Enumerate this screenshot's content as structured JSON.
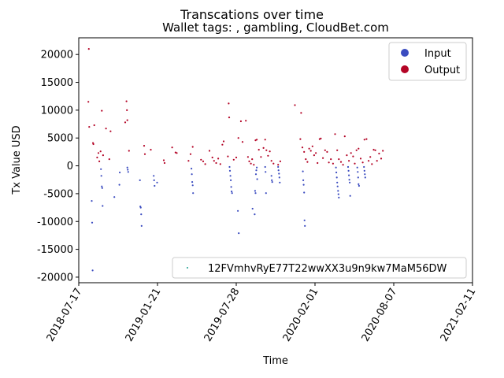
{
  "chart_data": {
    "type": "scatter",
    "title": "Transcations over time",
    "subtitle": "Wallet tags: , gambling, CloudBet.com",
    "xlabel": "Time",
    "ylabel": "Tx Value USD",
    "xlim": [
      "2018-07-17",
      "2021-02-11"
    ],
    "ylim": [
      -21000,
      23000
    ],
    "x_ticks": [
      "2018-07-17",
      "2019-01-21",
      "2019-07-28",
      "2020-02-01",
      "2020-08-07",
      "2021-02-11"
    ],
    "y_ticks": [
      -20000,
      -15000,
      -10000,
      -5000,
      0,
      5000,
      10000,
      15000,
      20000
    ],
    "grid": false,
    "legend_upper": {
      "placement": "top-right",
      "entries": [
        "Input",
        "Output"
      ]
    },
    "legend_lower": {
      "placement": "bottom-right",
      "entries": [
        "12FVmhvRyE77T22wwXX3u9n9kw7MaM56DW"
      ]
    },
    "colors": {
      "input": "#3b4cc0",
      "output": "#b40426",
      "address": "#1a9e8f"
    },
    "series": [
      {
        "name": "Output",
        "points": [
          [
            "2018-08-10",
            21000
          ],
          [
            "2018-08-09",
            11500
          ],
          [
            "2018-08-11",
            7000
          ],
          [
            "2018-08-20",
            4100
          ],
          [
            "2018-08-21",
            3900
          ],
          [
            "2018-08-23",
            7300
          ],
          [
            "2018-08-30",
            1500
          ],
          [
            "2018-09-02",
            2300
          ],
          [
            "2018-09-04",
            800
          ],
          [
            "2018-09-07",
            2600
          ],
          [
            "2018-09-10",
            9900
          ],
          [
            "2018-09-13",
            1900
          ],
          [
            "2018-09-20",
            6700
          ],
          [
            "2018-09-28",
            1200
          ],
          [
            "2018-10-01",
            6200
          ],
          [
            "2018-11-05",
            7800
          ],
          [
            "2018-11-08",
            11600
          ],
          [
            "2018-11-09",
            10000
          ],
          [
            "2018-11-10",
            8200
          ],
          [
            "2018-11-14",
            2700
          ],
          [
            "2018-12-20",
            3600
          ],
          [
            "2018-12-22",
            2100
          ],
          [
            "2019-01-05",
            2900
          ],
          [
            "2019-02-05",
            1000
          ],
          [
            "2019-02-07",
            500
          ],
          [
            "2019-02-25",
            3300
          ],
          [
            "2019-03-05",
            2400
          ],
          [
            "2019-03-08",
            2300
          ],
          [
            "2019-04-05",
            900
          ],
          [
            "2019-04-10",
            2100
          ],
          [
            "2019-04-15",
            3400
          ],
          [
            "2019-05-05",
            1100
          ],
          [
            "2019-05-10",
            800
          ],
          [
            "2019-05-15",
            300
          ],
          [
            "2019-05-25",
            2700
          ],
          [
            "2019-06-01",
            1500
          ],
          [
            "2019-06-05",
            900
          ],
          [
            "2019-06-10",
            500
          ],
          [
            "2019-06-15",
            1300
          ],
          [
            "2019-06-20",
            300
          ],
          [
            "2019-06-25",
            3800
          ],
          [
            "2019-06-28",
            4400
          ],
          [
            "2019-07-08",
            1700
          ],
          [
            "2019-07-10",
            11200
          ],
          [
            "2019-07-11",
            8700
          ],
          [
            "2019-07-22",
            1100
          ],
          [
            "2019-07-28",
            1500
          ],
          [
            "2019-08-02",
            5000
          ],
          [
            "2019-08-08",
            8000
          ],
          [
            "2019-08-12",
            4300
          ],
          [
            "2019-08-20",
            8100
          ],
          [
            "2019-08-25",
            1600
          ],
          [
            "2019-08-28",
            800
          ],
          [
            "2019-09-01",
            400
          ],
          [
            "2019-09-04",
            1200
          ],
          [
            "2019-09-08",
            200
          ],
          [
            "2019-09-12",
            4600
          ],
          [
            "2019-09-15",
            4700
          ],
          [
            "2019-09-20",
            2900
          ],
          [
            "2019-09-25",
            1600
          ],
          [
            "2019-10-01",
            3200
          ],
          [
            "2019-10-05",
            4700
          ],
          [
            "2019-10-08",
            2800
          ],
          [
            "2019-10-12",
            1800
          ],
          [
            "2019-10-16",
            2600
          ],
          [
            "2019-10-20",
            900
          ],
          [
            "2019-10-25",
            400
          ],
          [
            "2019-11-05",
            200
          ],
          [
            "2019-11-10",
            800
          ],
          [
            "2019-12-15",
            10900
          ],
          [
            "2019-12-30",
            9500
          ],
          [
            "2019-12-28",
            4800
          ],
          [
            "2020-01-02",
            3300
          ],
          [
            "2020-01-06",
            2500
          ],
          [
            "2020-01-10",
            1200
          ],
          [
            "2020-01-14",
            700
          ],
          [
            "2020-01-18",
            3100
          ],
          [
            "2020-01-22",
            2700
          ],
          [
            "2020-01-26",
            3500
          ],
          [
            "2020-01-30",
            1900
          ],
          [
            "2020-02-03",
            2300
          ],
          [
            "2020-02-07",
            500
          ],
          [
            "2020-02-12",
            4800
          ],
          [
            "2020-02-15",
            4900
          ],
          [
            "2020-02-20",
            1400
          ],
          [
            "2020-02-25",
            2800
          ],
          [
            "2020-03-01",
            2500
          ],
          [
            "2020-03-05",
            600
          ],
          [
            "2020-03-10",
            1200
          ],
          [
            "2020-03-15",
            400
          ],
          [
            "2020-03-20",
            5700
          ],
          [
            "2020-03-25",
            2800
          ],
          [
            "2020-03-29",
            1200
          ],
          [
            "2020-04-03",
            700
          ],
          [
            "2020-04-08",
            200
          ],
          [
            "2020-04-12",
            5300
          ],
          [
            "2020-04-17",
            1900
          ],
          [
            "2020-04-22",
            900
          ],
          [
            "2020-04-27",
            2300
          ],
          [
            "2020-05-02",
            1700
          ],
          [
            "2020-05-06",
            400
          ],
          [
            "2020-05-10",
            2800
          ],
          [
            "2020-05-15",
            3100
          ],
          [
            "2020-05-20",
            1300
          ],
          [
            "2020-05-25",
            600
          ],
          [
            "2020-05-29",
            4700
          ],
          [
            "2020-06-03",
            4800
          ],
          [
            "2020-06-08",
            900
          ],
          [
            "2020-06-12",
            1600
          ],
          [
            "2020-06-16",
            300
          ],
          [
            "2020-06-20",
            2900
          ],
          [
            "2020-06-24",
            2800
          ],
          [
            "2020-06-28",
            900
          ],
          [
            "2020-07-03",
            2200
          ],
          [
            "2020-07-08",
            1300
          ],
          [
            "2020-07-12",
            2700
          ]
        ]
      },
      {
        "name": "Input",
        "points": [
          [
            "2018-08-17",
            -6300
          ],
          [
            "2018-08-18",
            -10200
          ],
          [
            "2018-08-19",
            -18800
          ],
          [
            "2018-09-08",
            -600
          ],
          [
            "2018-09-09",
            -1800
          ],
          [
            "2018-09-10",
            -3700
          ],
          [
            "2018-09-11",
            -4000
          ],
          [
            "2018-09-12",
            -7200
          ],
          [
            "2018-10-10",
            -5600
          ],
          [
            "2018-10-22",
            -3400
          ],
          [
            "2018-10-23",
            -1200
          ],
          [
            "2018-11-10",
            -300
          ],
          [
            "2018-11-11",
            -700
          ],
          [
            "2018-11-12",
            -1100
          ],
          [
            "2018-12-10",
            -2600
          ],
          [
            "2018-12-11",
            -7300
          ],
          [
            "2018-12-12",
            -7500
          ],
          [
            "2018-12-13",
            -8700
          ],
          [
            "2018-12-14",
            -10800
          ],
          [
            "2019-01-12",
            -1800
          ],
          [
            "2019-01-13",
            -2600
          ],
          [
            "2019-01-14",
            -3600
          ],
          [
            "2019-01-20",
            -3000
          ],
          [
            "2019-04-12",
            -500
          ],
          [
            "2019-04-13",
            -1500
          ],
          [
            "2019-04-14",
            -2900
          ],
          [
            "2019-04-15",
            -3500
          ],
          [
            "2019-04-16",
            -4900
          ],
          [
            "2019-07-12",
            -200
          ],
          [
            "2019-07-13",
            -900
          ],
          [
            "2019-07-14",
            -1800
          ],
          [
            "2019-07-15",
            -2600
          ],
          [
            "2019-07-16",
            -3800
          ],
          [
            "2019-07-17",
            -4600
          ],
          [
            "2019-07-18",
            -4900
          ],
          [
            "2019-08-01",
            -8100
          ],
          [
            "2019-08-03",
            -12100
          ],
          [
            "2019-09-05",
            -7700
          ],
          [
            "2019-09-10",
            -8700
          ],
          [
            "2019-09-11",
            -4500
          ],
          [
            "2019-09-12",
            -4900
          ],
          [
            "2019-09-13",
            -1500
          ],
          [
            "2019-09-14",
            -800
          ],
          [
            "2019-09-15",
            -300
          ],
          [
            "2019-09-16",
            -2400
          ],
          [
            "2019-10-05",
            -200
          ],
          [
            "2019-10-06",
            -1100
          ],
          [
            "2019-10-07",
            -4900
          ],
          [
            "2019-10-20",
            -1800
          ],
          [
            "2019-10-21",
            -2600
          ],
          [
            "2019-10-22",
            -2900
          ],
          [
            "2019-11-05",
            -200
          ],
          [
            "2019-11-06",
            -800
          ],
          [
            "2019-11-07",
            -1400
          ],
          [
            "2019-11-08",
            -2100
          ],
          [
            "2019-11-09",
            -3000
          ],
          [
            "2020-01-03",
            -1000
          ],
          [
            "2020-01-04",
            -2600
          ],
          [
            "2020-01-05",
            -3400
          ],
          [
            "2020-01-06",
            -4800
          ],
          [
            "2020-01-07",
            -9800
          ],
          [
            "2020-01-08",
            -10800
          ],
          [
            "2020-03-22",
            -300
          ],
          [
            "2020-03-23",
            -1200
          ],
          [
            "2020-03-24",
            -2100
          ],
          [
            "2020-03-25",
            -3000
          ],
          [
            "2020-03-26",
            -3700
          ],
          [
            "2020-03-27",
            -4500
          ],
          [
            "2020-03-28",
            -5100
          ],
          [
            "2020-03-29",
            -5700
          ],
          [
            "2020-04-20",
            -200
          ],
          [
            "2020-04-21",
            -900
          ],
          [
            "2020-04-22",
            -1700
          ],
          [
            "2020-04-23",
            -2500
          ],
          [
            "2020-04-24",
            -3000
          ],
          [
            "2020-04-25",
            -5400
          ],
          [
            "2020-05-12",
            -300
          ],
          [
            "2020-05-13",
            -1100
          ],
          [
            "2020-05-14",
            -2100
          ],
          [
            "2020-05-15",
            -3300
          ],
          [
            "2020-05-16",
            -3600
          ],
          [
            "2020-05-28",
            -200
          ],
          [
            "2020-05-29",
            -900
          ],
          [
            "2020-05-30",
            -1500
          ],
          [
            "2020-05-31",
            -2100
          ]
        ]
      }
    ]
  }
}
